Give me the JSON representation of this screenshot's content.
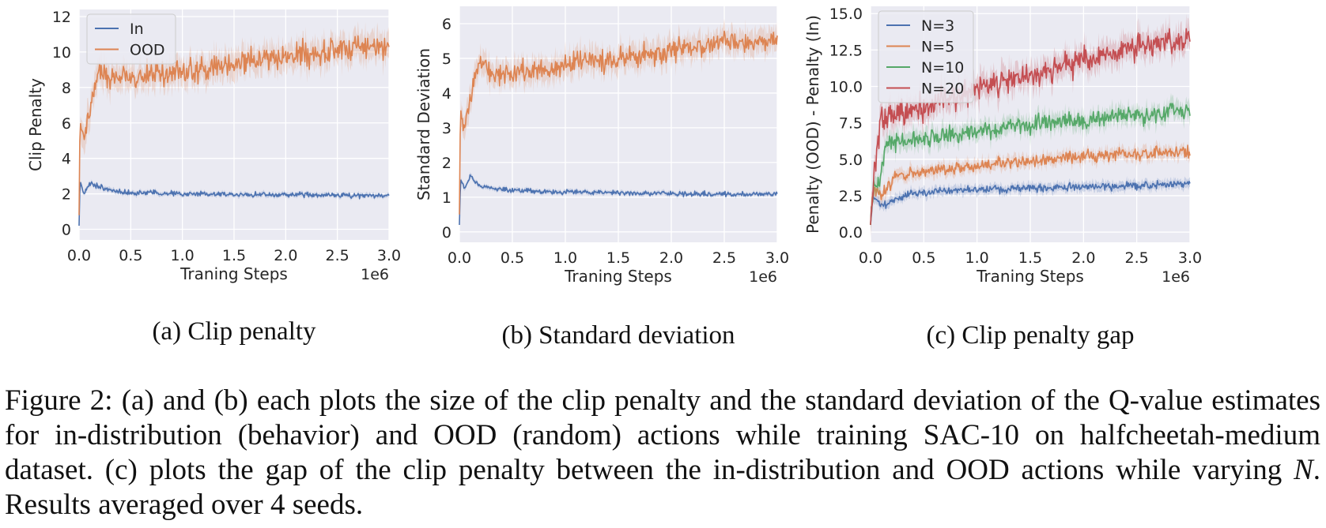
{
  "colors": {
    "panel_bg": "#EAEAF2",
    "grid": "#FFFFFF",
    "blue": "#4C72B0",
    "orange": "#DD8452",
    "green": "#55A868",
    "red": "#C44E52",
    "text": "#262626"
  },
  "chart_data": [
    {
      "id": "a",
      "type": "line",
      "subcaption": "(a) Clip penalty",
      "xlabel": "Traning Steps",
      "ylabel": "Clip Penalty",
      "x_offset_label": "1e6",
      "xlim": [
        0,
        3.0
      ],
      "ylim": [
        -0.6,
        12.4
      ],
      "xticks": [
        0.0,
        0.5,
        1.0,
        1.5,
        2.0,
        2.5,
        3.0
      ],
      "xtick_labels": [
        "0.0",
        "0.5",
        "1.0",
        "1.5",
        "2.0",
        "2.5",
        "3.0"
      ],
      "yticks": [
        0,
        2,
        4,
        6,
        8,
        10,
        12
      ],
      "ytick_labels": [
        "0",
        "2",
        "4",
        "6",
        "8",
        "10",
        "12"
      ],
      "grid": true,
      "legend_position": "top-left",
      "series": [
        {
          "name": "In",
          "color": "#4C72B0",
          "noise": 0.07,
          "band": 0.12,
          "points": [
            [
              0,
              0.2
            ],
            [
              0.01,
              2.7
            ],
            [
              0.05,
              2.0
            ],
            [
              0.1,
              2.6
            ],
            [
              0.2,
              2.4
            ],
            [
              0.4,
              2.1
            ],
            [
              1.0,
              2.0
            ],
            [
              2.0,
              1.95
            ],
            [
              3.0,
              1.9
            ]
          ]
        },
        {
          "name": "OOD",
          "color": "#DD8452",
          "noise": 0.35,
          "band": 0.7,
          "points": [
            [
              0,
              0.8
            ],
            [
              0.01,
              6.0
            ],
            [
              0.05,
              5.0
            ],
            [
              0.1,
              6.5
            ],
            [
              0.18,
              8.8
            ],
            [
              0.3,
              8.5
            ],
            [
              0.6,
              8.6
            ],
            [
              1.0,
              8.9
            ],
            [
              1.5,
              9.3
            ],
            [
              2.0,
              9.7
            ],
            [
              2.5,
              10.1
            ],
            [
              3.0,
              10.4
            ]
          ]
        }
      ]
    },
    {
      "id": "b",
      "type": "line",
      "subcaption": "(b) Standard deviation",
      "xlabel": "Traning Steps",
      "ylabel": "Standard Deviation",
      "x_offset_label": "1e6",
      "xlim": [
        0,
        3.0
      ],
      "ylim": [
        -0.3,
        6.5
      ],
      "xticks": [
        0.0,
        0.5,
        1.0,
        1.5,
        2.0,
        2.5,
        3.0
      ],
      "xtick_labels": [
        "0.0",
        "0.5",
        "1.0",
        "1.5",
        "2.0",
        "2.5",
        "3.0"
      ],
      "yticks": [
        0,
        1,
        2,
        3,
        4,
        5,
        6
      ],
      "ytick_labels": [
        "0",
        "1",
        "2",
        "3",
        "4",
        "5",
        "6"
      ],
      "grid": true,
      "legend_position": "none",
      "series": [
        {
          "name": "",
          "color": "#4C72B0",
          "noise": 0.035,
          "band": 0.06,
          "points": [
            [
              0,
              0.2
            ],
            [
              0.01,
              1.5
            ],
            [
              0.05,
              1.25
            ],
            [
              0.1,
              1.6
            ],
            [
              0.2,
              1.3
            ],
            [
              0.5,
              1.2
            ],
            [
              1.0,
              1.15
            ],
            [
              2.0,
              1.1
            ],
            [
              3.0,
              1.08
            ]
          ]
        },
        {
          "name": "",
          "color": "#DD8452",
          "noise": 0.16,
          "band": 0.32,
          "points": [
            [
              0,
              0.5
            ],
            [
              0.01,
              3.5
            ],
            [
              0.05,
              2.9
            ],
            [
              0.1,
              3.8
            ],
            [
              0.18,
              4.9
            ],
            [
              0.3,
              4.6
            ],
            [
              0.6,
              4.6
            ],
            [
              1.0,
              4.8
            ],
            [
              1.5,
              5.0
            ],
            [
              2.0,
              5.2
            ],
            [
              2.5,
              5.4
            ],
            [
              3.0,
              5.55
            ]
          ]
        }
      ]
    },
    {
      "id": "c",
      "type": "line",
      "subcaption": "(c) Clip penalty gap",
      "xlabel": "Traning Steps",
      "ylabel": "Penalty (OOD) - Penalty (In)",
      "x_offset_label": "1e6",
      "xlim": [
        0,
        3.0
      ],
      "ylim": [
        -0.7,
        15.5
      ],
      "xticks": [
        0.0,
        0.5,
        1.0,
        1.5,
        2.0,
        2.5,
        3.0
      ],
      "xtick_labels": [
        "0.0",
        "0.5",
        "1.0",
        "1.5",
        "2.0",
        "2.5",
        "3.0"
      ],
      "yticks": [
        0.0,
        2.5,
        5.0,
        7.5,
        10.0,
        12.5,
        15.0
      ],
      "ytick_labels": [
        "0.0",
        "2.5",
        "5.0",
        "7.5",
        "10.0",
        "12.5",
        "15.0"
      ],
      "grid": true,
      "legend_position": "top-left",
      "series": [
        {
          "name": "N=3",
          "color": "#4C72B0",
          "noise": 0.13,
          "band": 0.3,
          "points": [
            [
              0,
              0.5
            ],
            [
              0.02,
              2.5
            ],
            [
              0.1,
              1.8
            ],
            [
              0.3,
              2.5
            ],
            [
              0.6,
              2.8
            ],
            [
              1.0,
              2.9
            ],
            [
              1.5,
              3.0
            ],
            [
              2.0,
              3.1
            ],
            [
              2.5,
              3.2
            ],
            [
              3.0,
              3.3
            ]
          ]
        },
        {
          "name": "N=5",
          "color": "#DD8452",
          "noise": 0.2,
          "band": 0.4,
          "points": [
            [
              0,
              0.5
            ],
            [
              0.02,
              3.0
            ],
            [
              0.1,
              2.6
            ],
            [
              0.25,
              3.8
            ],
            [
              0.6,
              4.3
            ],
            [
              1.0,
              4.5
            ],
            [
              1.5,
              4.9
            ],
            [
              2.0,
              5.2
            ],
            [
              2.5,
              5.4
            ],
            [
              3.0,
              5.5
            ]
          ]
        },
        {
          "name": "N=10",
          "color": "#55A868",
          "noise": 0.3,
          "band": 0.55,
          "points": [
            [
              0,
              0.5
            ],
            [
              0.03,
              3.5
            ],
            [
              0.07,
              3.0
            ],
            [
              0.15,
              6.3
            ],
            [
              0.3,
              6.2
            ],
            [
              0.6,
              6.5
            ],
            [
              1.0,
              6.9
            ],
            [
              1.5,
              7.4
            ],
            [
              2.0,
              7.7
            ],
            [
              2.5,
              8.0
            ],
            [
              3.0,
              8.4
            ]
          ]
        },
        {
          "name": "N=20",
          "color": "#C44E52",
          "noise": 0.45,
          "band": 0.8,
          "points": [
            [
              0,
              0.5
            ],
            [
              0.03,
              3.5
            ],
            [
              0.1,
              7.8
            ],
            [
              0.2,
              8.1
            ],
            [
              0.5,
              8.6
            ],
            [
              1.0,
              9.8
            ],
            [
              1.5,
              10.8
            ],
            [
              2.0,
              11.8
            ],
            [
              2.5,
              12.7
            ],
            [
              3.0,
              13.3
            ]
          ]
        }
      ]
    }
  ],
  "caption": {
    "part1": "Figure 2: (a) and (b) each plots the size of the clip penalty and the standard deviation of the Q-value estimates for in-distribution (behavior) and OOD (random) actions while training SAC-10 on halfcheetah-medium dataset. (c) plots the gap of the clip penalty between the in-distribution and OOD actions while varying ",
    "var": "N",
    "part2": ". Results averaged over 4 seeds."
  }
}
